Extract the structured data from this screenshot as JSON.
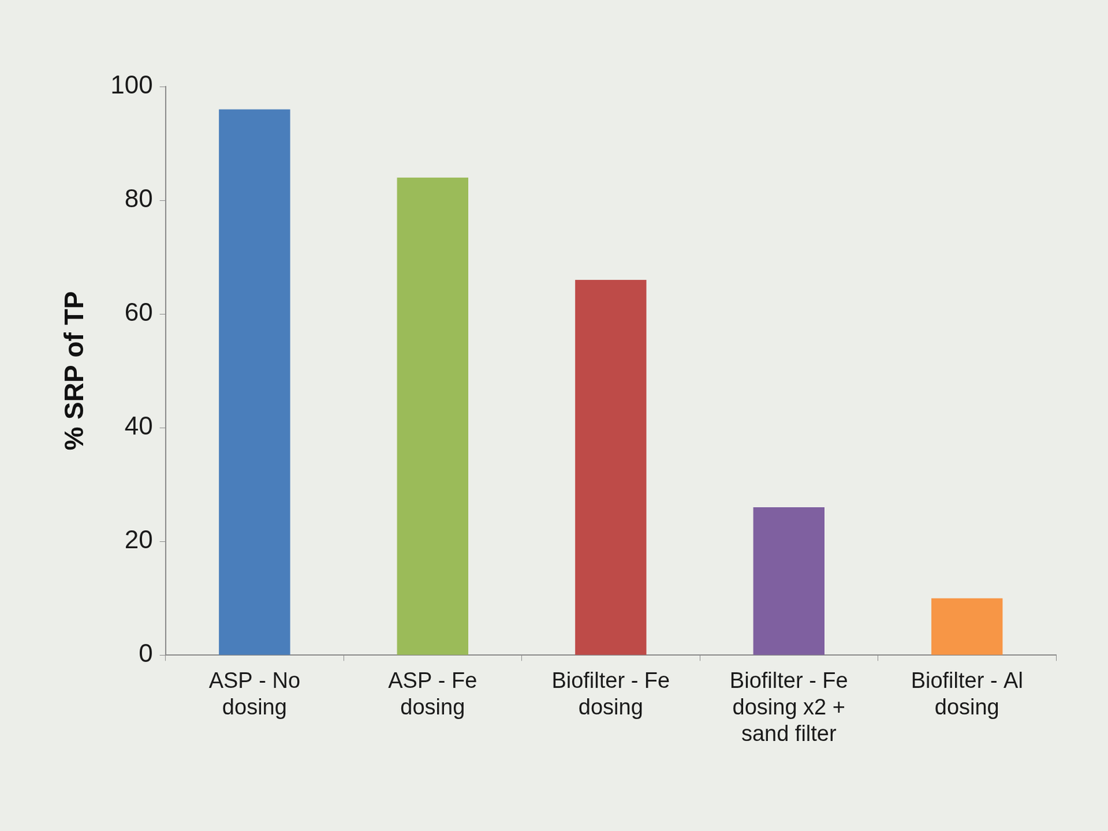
{
  "chart_data": {
    "type": "bar",
    "ylabel": "% SRP of TP",
    "categories": [
      "ASP - No dosing",
      "ASP - Fe dosing",
      "Biofilter - Fe dosing",
      "Biofilter - Fe dosing x2 + sand filter",
      "Biofilter - Al dosing"
    ],
    "values": [
      96,
      84,
      66,
      26,
      10
    ],
    "colors": [
      "#4a7ebb",
      "#9bbb59",
      "#be4b48",
      "#7f60a0",
      "#f79646"
    ],
    "ylim": [
      0,
      100
    ],
    "yticks": [
      0,
      20,
      40,
      60,
      80,
      100
    ],
    "grid": false
  }
}
